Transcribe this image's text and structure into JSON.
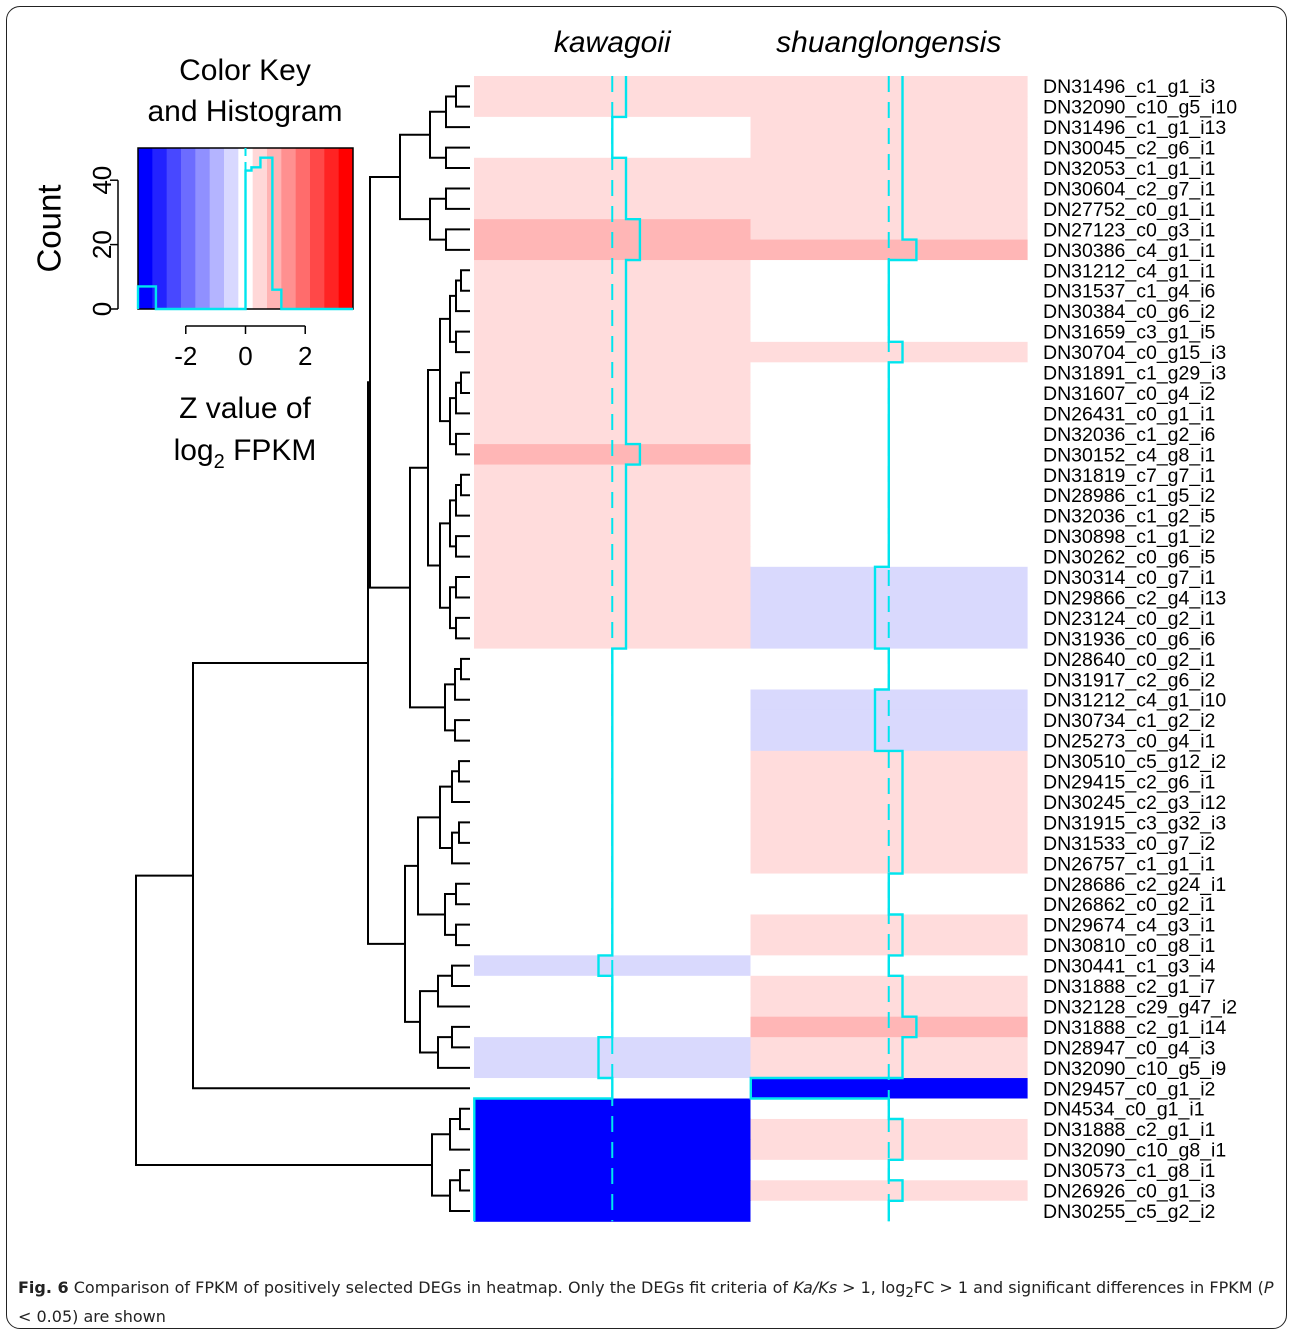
{
  "chart_data": {
    "type": "heatmap",
    "columns": [
      "kawagoii",
      "shuanglongensis"
    ],
    "rows": [
      "DN31496_c1_g1_i3",
      "DN32090_c10_g5_i10",
      "DN31496_c1_g1_i13",
      "DN30045_c2_g6_i1",
      "DN32053_c1_g1_i1",
      "DN30604_c2_g7_i1",
      "DN27752_c0_g1_i1",
      "DN27123_c0_g3_i1",
      "DN30386_c4_g1_i1",
      "DN31212_c4_g1_i1",
      "DN31537_c1_g4_i6",
      "DN30384_c0_g6_i2",
      "DN31659_c3_g1_i5",
      "DN30704_c0_g15_i3",
      "DN31891_c1_g29_i3",
      "DN31607_c0_g4_i2",
      "DN26431_c0_g1_i1",
      "DN32036_c1_g2_i6",
      "DN30152_c4_g8_i1",
      "DN31819_c7_g7_i1",
      "DN28986_c1_g5_i2",
      "DN32036_c1_g2_i5",
      "DN30898_c1_g1_i2",
      "DN30262_c0_g6_i5",
      "DN30314_c0_g7_i1",
      "DN29866_c2_g4_i13",
      "DN23124_c0_g2_i1",
      "DN31936_c0_g6_i6",
      "DN28640_c0_g2_i1",
      "DN31917_c2_g6_i2",
      "DN31212_c4_g1_i10",
      "DN30734_c1_g2_i2",
      "DN25273_c0_g4_i1",
      "DN30510_c5_g12_i2",
      "DN29415_c2_g6_i1",
      "DN30245_c2_g3_i12",
      "DN31915_c3_g32_i3",
      "DN31533_c0_g7_i2",
      "DN26757_c1_g1_i1",
      "DN28686_c2_g24_i1",
      "DN26862_c0_g2_i1",
      "DN29674_c4_g3_i1",
      "DN30810_c0_g8_i1",
      "DN30441_c1_g3_i4",
      "DN31888_c2_g1_i7",
      "DN32128_c29_g47_i2",
      "DN31888_c2_g1_i14",
      "DN28947_c0_g4_i3",
      "DN32090_c10_g5_i9",
      "DN29457_c0_g1_i2",
      "DN4534_c0_g1_i1",
      "DN31888_c2_g1_i1",
      "DN32090_c10_g8_i1",
      "DN30573_c1_g8_i1",
      "DN26926_c0_g1_i3",
      "DN30255_c5_g2_i2"
    ],
    "values": [
      [
        0.3,
        0.3
      ],
      [
        0.3,
        0.3
      ],
      [
        0.0,
        0.3
      ],
      [
        0.0,
        0.3
      ],
      [
        0.3,
        0.3
      ],
      [
        0.3,
        0.3
      ],
      [
        0.3,
        0.3
      ],
      [
        0.6,
        0.3
      ],
      [
        0.6,
        0.6
      ],
      [
        0.3,
        0.0
      ],
      [
        0.3,
        0.0
      ],
      [
        0.3,
        0.0
      ],
      [
        0.3,
        0.0
      ],
      [
        0.3,
        0.3
      ],
      [
        0.3,
        0.0
      ],
      [
        0.3,
        0.0
      ],
      [
        0.3,
        0.0
      ],
      [
        0.3,
        0.0
      ],
      [
        0.6,
        0.0
      ],
      [
        0.3,
        0.0
      ],
      [
        0.3,
        0.0
      ],
      [
        0.3,
        0.0
      ],
      [
        0.3,
        0.0
      ],
      [
        0.3,
        0.0
      ],
      [
        0.3,
        -0.3
      ],
      [
        0.3,
        -0.3
      ],
      [
        0.3,
        -0.3
      ],
      [
        0.3,
        -0.3
      ],
      [
        0.0,
        0.0
      ],
      [
        0.0,
        0.0
      ],
      [
        0.0,
        -0.3
      ],
      [
        0.0,
        -0.3
      ],
      [
        0.0,
        -0.3
      ],
      [
        0.0,
        0.3
      ],
      [
        0.0,
        0.3
      ],
      [
        0.0,
        0.3
      ],
      [
        0.0,
        0.3
      ],
      [
        0.0,
        0.3
      ],
      [
        0.0,
        0.3
      ],
      [
        0.0,
        0.0
      ],
      [
        0.0,
        0.0
      ],
      [
        0.0,
        0.3
      ],
      [
        0.0,
        0.3
      ],
      [
        -0.3,
        0.0
      ],
      [
        0.0,
        0.3
      ],
      [
        0.0,
        0.3
      ],
      [
        0.0,
        0.6
      ],
      [
        -0.3,
        0.3
      ],
      [
        -0.3,
        0.3
      ],
      [
        0.0,
        -3.0
      ],
      [
        -3.0,
        0.0
      ],
      [
        -3.0,
        0.3
      ],
      [
        -3.0,
        0.3
      ],
      [
        -3.0,
        0.0
      ],
      [
        -3.0,
        0.3
      ],
      [
        -3.0,
        0.0
      ]
    ],
    "color_key": {
      "title_line1": "Color Key",
      "title_line2": "and Histogram",
      "ylabel": "Count",
      "yticks": [
        0,
        20,
        40
      ],
      "xticks": [
        -2,
        0,
        2
      ],
      "xticklabels": [
        "-2",
        "0",
        "2"
      ],
      "xlabel_line1": "Z value of",
      "xlabel_pre": "log",
      "xlabel_sub": "2",
      "xlabel_post": " FPKM",
      "xrange": [
        -3.6,
        3.6
      ],
      "yrange": [
        0,
        50
      ],
      "histogram_bins": [
        [
          -3.6,
          -3.0,
          7
        ],
        [
          -3.0,
          0.0,
          0
        ],
        [
          0.0,
          0.2,
          43
        ],
        [
          0.2,
          0.5,
          44
        ],
        [
          0.5,
          0.9,
          47
        ],
        [
          0.9,
          1.2,
          6
        ],
        [
          1.2,
          3.6,
          0
        ]
      ],
      "colors": [
        "#0000ff",
        "#2323ff",
        "#4848ff",
        "#6c6cff",
        "#9090ff",
        "#b4b4ff",
        "#d8d8ff",
        "#ffffff",
        "#ffd8d8",
        "#ffb4b4",
        "#ff9090",
        "#ff6c6c",
        "#ff4848",
        "#ff2323",
        "#ff0000"
      ]
    },
    "trace_color": "#00e5ee"
  },
  "caption": {
    "fig_label": "Fig. 6",
    "text_1": " Comparison of FPKM of positively selected DEGs in heatmap. Only the DEGs fit criteria of ",
    "kaks": "Ka/Ks",
    "text_2": " > 1, log",
    "sub2": "2",
    "text_3": "FC > 1 and significant differences in FPKM (",
    "p": "P",
    "text_4": " < 0.05) are shown"
  }
}
